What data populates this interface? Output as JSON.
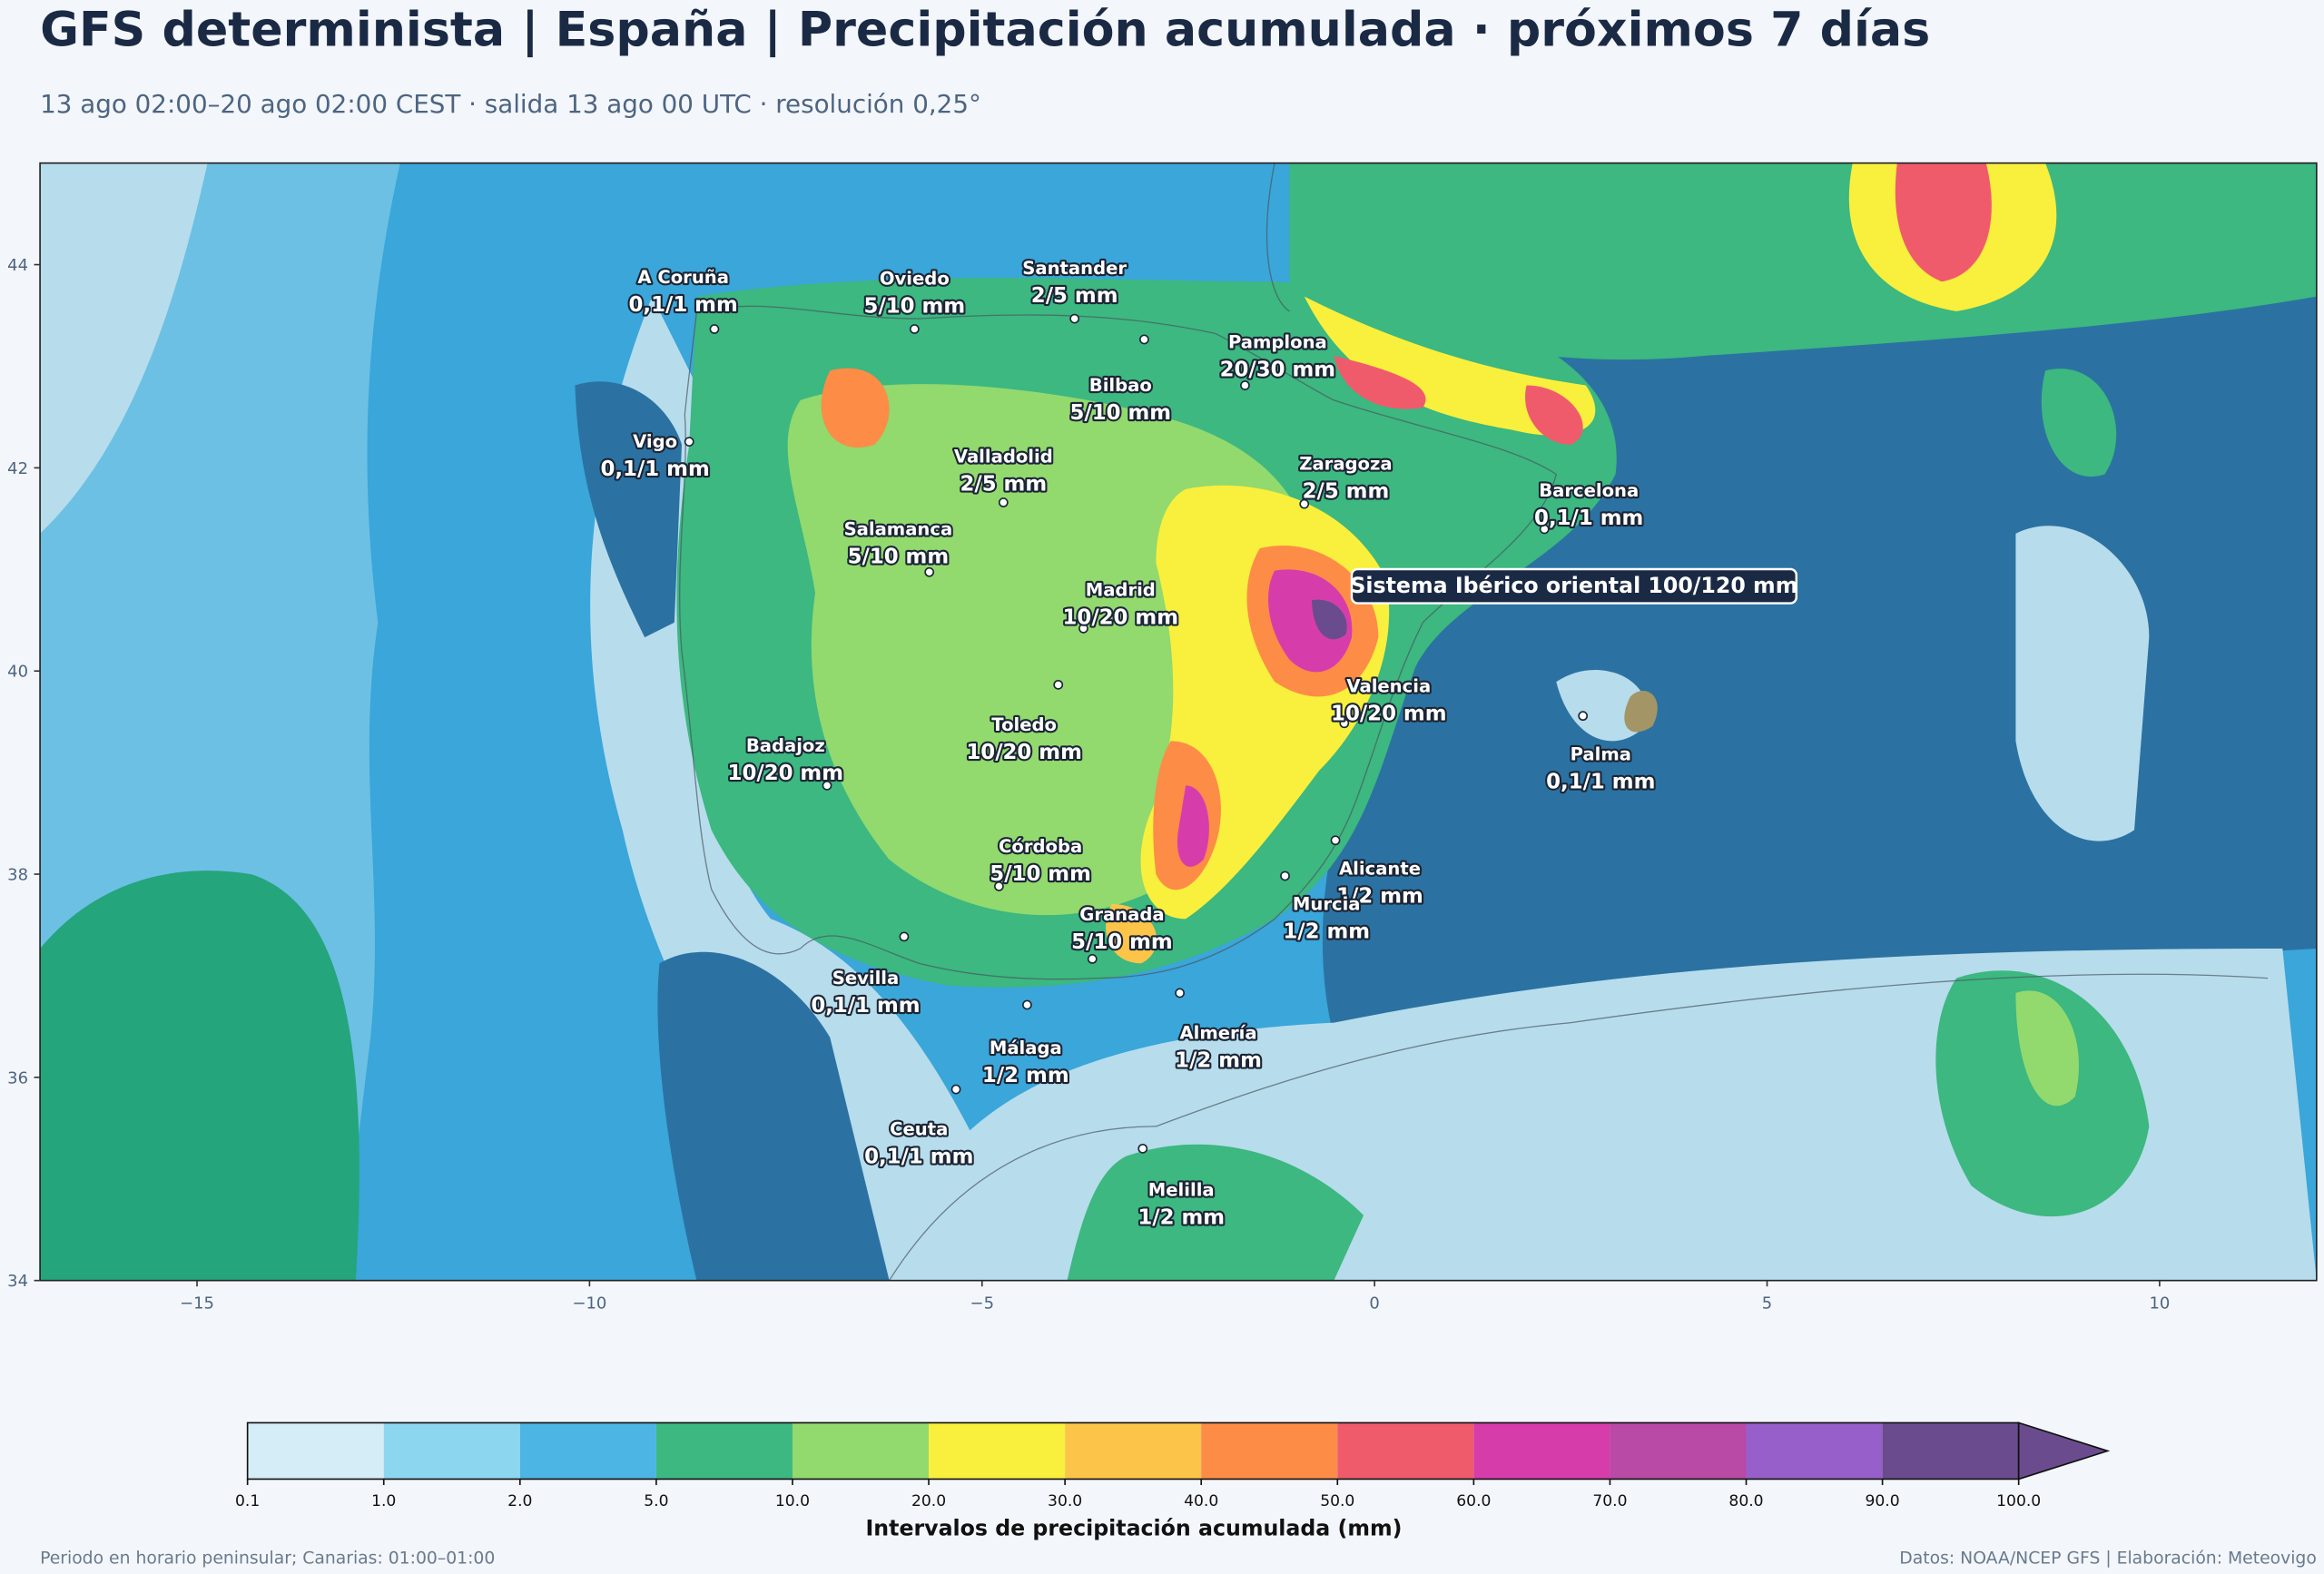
{
  "header": {
    "title": "GFS determinista | España | Precipitación acumulada · próximos 7 días",
    "subtitle": "13 ago 02:00–20 ago 02:00 CEST · salida 13 ago 00 UTC · resolución 0,25°"
  },
  "map": {
    "xlim": [
      -17,
      12
    ],
    "ylim": [
      34,
      45
    ],
    "xticks": [
      {
        "value": -15,
        "label": "−15"
      },
      {
        "value": -10,
        "label": "−10"
      },
      {
        "value": -5,
        "label": "−5"
      },
      0,
      5,
      10
    ],
    "yticks": [
      34,
      36,
      38,
      40,
      42,
      44
    ],
    "cities": [
      {
        "name": "A Coruña",
        "label": "0,1/1 mm"
      },
      {
        "name": "Oviedo",
        "label": "5/10 mm"
      },
      {
        "name": "Santander",
        "label": "2/5 mm"
      },
      {
        "name": "Bilbao",
        "label": "5/10 mm"
      },
      {
        "name": "Pamplona",
        "label": "20/30 mm"
      },
      {
        "name": "Vigo",
        "label": "0,1/1 mm"
      },
      {
        "name": "Valladolid",
        "label": "2/5 mm"
      },
      {
        "name": "Zaragoza",
        "label": "2/5 mm"
      },
      {
        "name": "Barcelona",
        "label": "0,1/1 mm"
      },
      {
        "name": "Salamanca",
        "label": "5/10 mm"
      },
      {
        "name": "Madrid",
        "label": "10/20 mm"
      },
      {
        "name": "Valencia",
        "label": "10/20 mm"
      },
      {
        "name": "Toledo",
        "label": "10/20 mm"
      },
      {
        "name": "Badajoz",
        "label": "10/20 mm"
      },
      {
        "name": "Palma",
        "label": "0,1/1 mm"
      },
      {
        "name": "Córdoba",
        "label": "5/10 mm"
      },
      {
        "name": "Alicante",
        "label": "1/2 mm"
      },
      {
        "name": "Murcia",
        "label": "1/2 mm"
      },
      {
        "name": "Granada",
        "label": "5/10 mm"
      },
      {
        "name": "Sevilla",
        "label": "0,1/1 mm"
      },
      {
        "name": "Almería",
        "label": "1/2 mm"
      },
      {
        "name": "Málaga",
        "label": "1/2 mm"
      },
      {
        "name": "Ceuta",
        "label": "0,1/1 mm"
      },
      {
        "name": "Melilla",
        "label": "1/2 mm"
      }
    ],
    "annotation": "Sistema Ibérico oriental 100/120 mm"
  },
  "colorbar": {
    "label": "Intervalos de precipitación acumulada (mm)",
    "ticks": [
      {
        "value": 0.1,
        "label": "0.1"
      },
      {
        "value": 1,
        "label": "1.0"
      },
      {
        "value": 2,
        "label": "2.0"
      },
      {
        "value": 5,
        "label": "5.0"
      },
      {
        "value": 10,
        "label": "10.0"
      },
      {
        "value": 20,
        "label": "20.0"
      },
      {
        "value": 30,
        "label": "30.0"
      },
      {
        "value": 40,
        "label": "40.0"
      },
      {
        "value": 50,
        "label": "50.0"
      },
      {
        "value": 60,
        "label": "60.0"
      },
      {
        "value": 70,
        "label": "70.0"
      },
      {
        "value": 80,
        "label": "80.0"
      },
      {
        "value": 90,
        "label": "90.0"
      },
      {
        "value": 100,
        "label": "100.0"
      }
    ],
    "colors": [
      "#d4edf6",
      "#8dd6ef",
      "#4cb5e3",
      "#3cb880",
      "#92d96e",
      "#f9ef3d",
      "#fdc44a",
      "#fd8c47",
      "#f05b6c",
      "#d63dab",
      "#b94aa6",
      "#965fc9",
      "#6a4c8e"
    ],
    "over_color": "#6a4c8e"
  },
  "footer": {
    "left": "Periodo en horario peninsular; Canarias: 01:00–01:00",
    "right": "Datos: NOAA/NCEP GFS | Elaboración: Meteovigo"
  }
}
